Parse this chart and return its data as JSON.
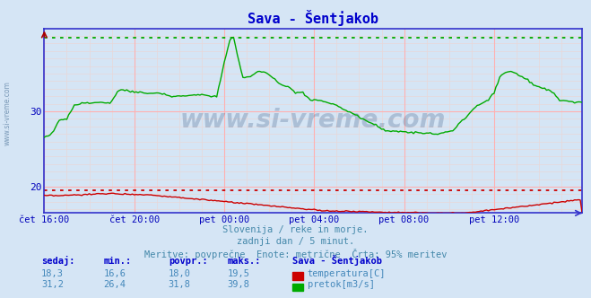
{
  "title": "Sava - Šentjakob",
  "bg_color": "#d5e5f5",
  "x_labels": [
    "čet 16:00",
    "čet 20:00",
    "pet 00:00",
    "pet 04:00",
    "pet 08:00",
    "pet 12:00"
  ],
  "x_ticks_pos": [
    0,
    48,
    96,
    144,
    192,
    240
  ],
  "total_points": 288,
  "ylim_bottom": 16.5,
  "ylim_top": 41.0,
  "yticks": [
    20,
    30
  ],
  "temp_color": "#cc0000",
  "flow_color": "#00aa00",
  "temp_max_val": 19.5,
  "flow_max_val": 39.8,
  "watermark_text": "www.si-vreme.com",
  "watermark_color": "#1a3a6a",
  "subtitle1": "Slovenija / reke in morje.",
  "subtitle2": "zadnji dan / 5 minut.",
  "subtitle3": "Meritve: povprečne  Enote: metrične  Črta: 95% meritev",
  "label_color": "#0000cc",
  "left_label": "www.si-vreme.com",
  "left_label_color": "#7090b0",
  "title_color": "#0000cc",
  "text_color": "#4488aa",
  "table_val_color": "#4488bb",
  "spine_color": "#3333cc",
  "grid_major_color": "#ffb0b0",
  "grid_minor_color": "#e8d8d8",
  "temp_sedaj": "18,3",
  "temp_min": "16,6",
  "temp_povpr": "18,0",
  "temp_maks": "19,5",
  "flow_sedaj": "31,2",
  "flow_min": "26,4",
  "flow_povpr": "31,8",
  "flow_maks": "39,8"
}
